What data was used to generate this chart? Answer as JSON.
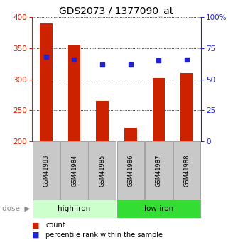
{
  "title": "GDS2073 / 1377090_at",
  "samples": [
    "GSM41983",
    "GSM41984",
    "GSM41985",
    "GSM41986",
    "GSM41987",
    "GSM41988"
  ],
  "bar_values": [
    390,
    355,
    265,
    222,
    302,
    310
  ],
  "bar_bottom": 200,
  "percentile_values": [
    68,
    66,
    62,
    62,
    65,
    66
  ],
  "bar_color": "#cc2200",
  "dot_color": "#2222cc",
  "ylim_left": [
    200,
    400
  ],
  "ylim_right": [
    0,
    100
  ],
  "yticks_left": [
    200,
    250,
    300,
    350,
    400
  ],
  "yticks_right": [
    0,
    25,
    50,
    75,
    100
  ],
  "ytick_labels_right": [
    "0",
    "25",
    "50",
    "75",
    "100%"
  ],
  "group1_label": "high iron",
  "group2_label": "low iron",
  "group1_indices": [
    0,
    1,
    2
  ],
  "group2_indices": [
    3,
    4,
    5
  ],
  "dose_label": "dose",
  "legend_count": "count",
  "legend_percentile": "percentile rank within the sample",
  "bg_color": "#ffffff",
  "label_area_color": "#c8c8c8",
  "group1_bg": "#ccffcc",
  "group2_bg": "#33dd33",
  "title_fontsize": 10,
  "bar_width": 0.45
}
